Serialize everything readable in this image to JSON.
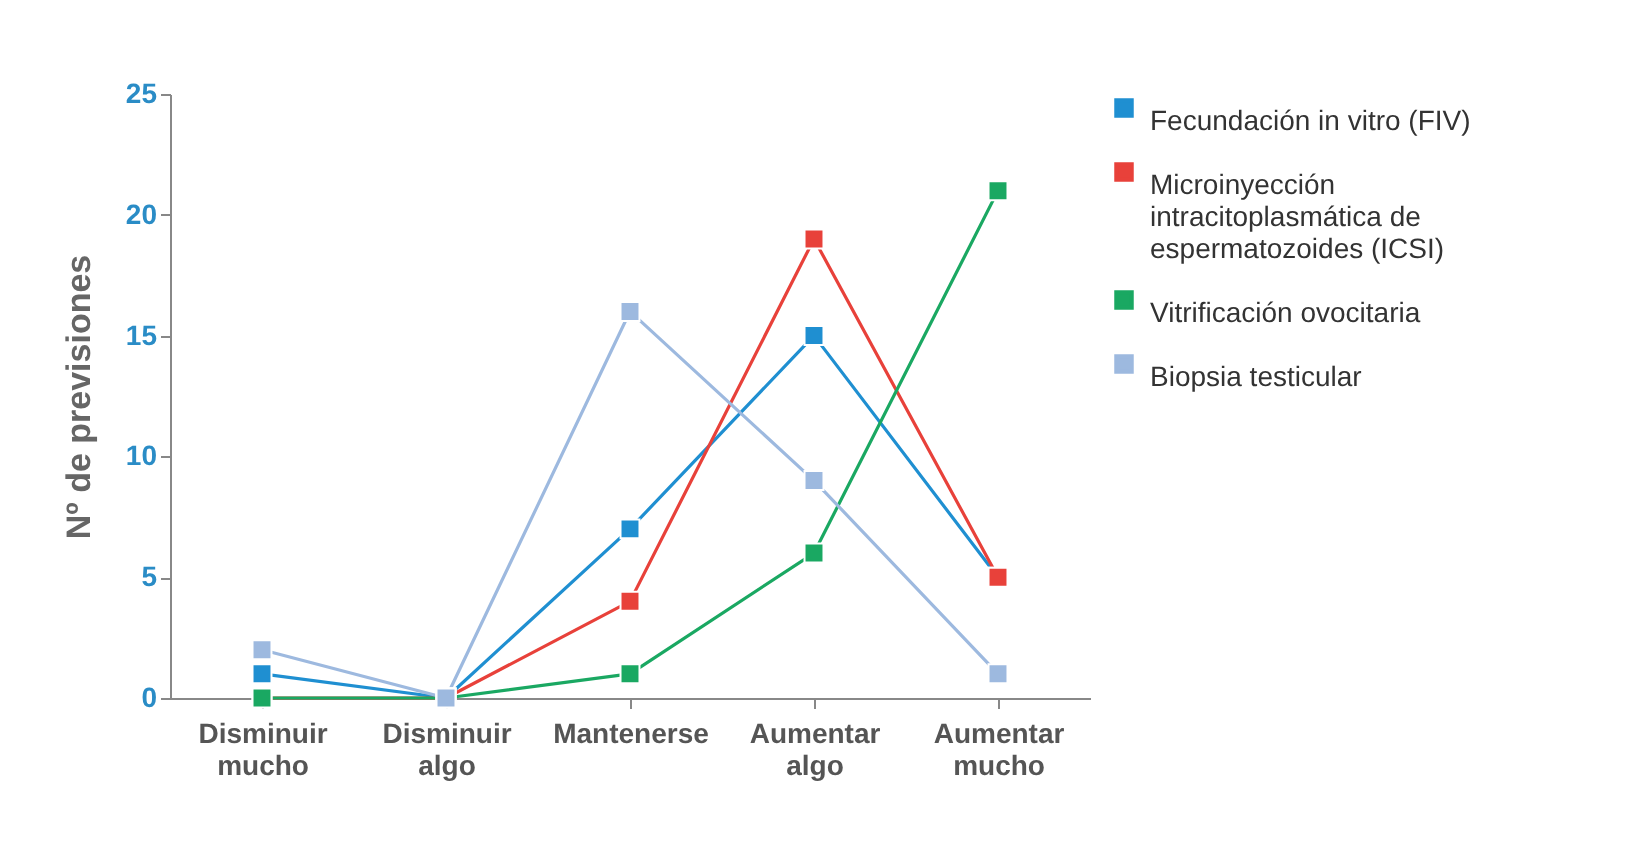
{
  "chart_data": {
    "type": "line",
    "ylabel": "Nº de previsiones",
    "categories": [
      "Disminuir mucho",
      "Disminuir algo",
      "Mantenerse",
      "Aumentar algo",
      "Aumentar mucho"
    ],
    "ylim": [
      0,
      25
    ],
    "yticks": [
      0,
      5,
      10,
      15,
      20,
      25
    ],
    "grid": false,
    "legend": "top right",
    "marker": "square",
    "line_style": "solid",
    "series": [
      {
        "name": "Fecundación in vitro (FIV)",
        "color": "#1f8fd1",
        "values": [
          1,
          0,
          7,
          15,
          5
        ]
      },
      {
        "name": "Microinyección intracitoplasmática de espermatozoides (ICSI)",
        "color": "#e8413a",
        "values": [
          0,
          0,
          4,
          19,
          5
        ]
      },
      {
        "name": "Vitrificación ovocitaria",
        "color": "#1aa862",
        "values": [
          0,
          0,
          1,
          6,
          21
        ]
      },
      {
        "name": "Biopsia testicular",
        "color": "#9db9df",
        "values": [
          2,
          0,
          16,
          9,
          1
        ]
      }
    ]
  }
}
